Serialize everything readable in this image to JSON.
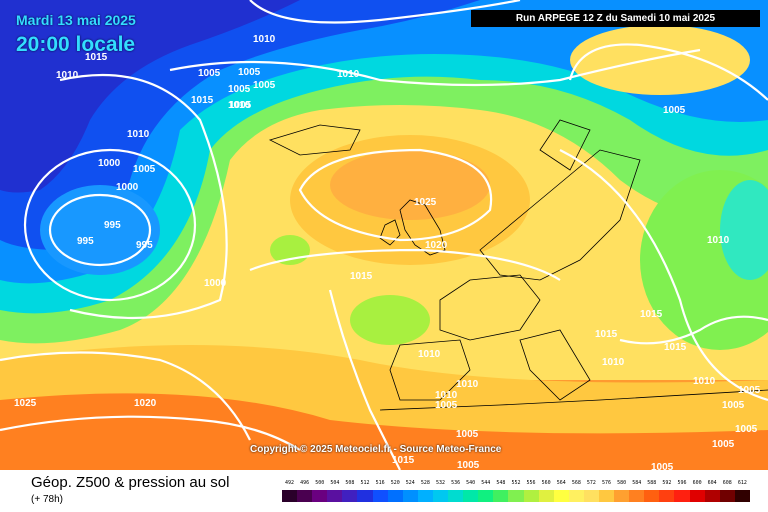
{
  "header": {
    "date": "Mardi 13 mai 2025",
    "time": "20:00 locale",
    "run": "Run ARPEGE 12 Z du Samedi 10 mai 2025"
  },
  "copyright": "Copyright © 2025 Meteociel.fr - Source Meteo-France",
  "footer": {
    "title": "Géop. Z500 & pression au sol",
    "subtitle": "(+ 78h)"
  },
  "scale": {
    "labels": [
      "492",
      "496",
      "500",
      "504",
      "508",
      "512",
      "516",
      "520",
      "524",
      "528",
      "532",
      "536",
      "540",
      "544",
      "548",
      "552",
      "556",
      "560",
      "564",
      "568",
      "572",
      "576",
      "580",
      "584",
      "588",
      "592",
      "596",
      "600",
      "604",
      "608",
      "612"
    ],
    "colors": [
      "#2a002a",
      "#4a0050",
      "#6a0080",
      "#5a10a0",
      "#4020c0",
      "#2030e0",
      "#1050ff",
      "#0070ff",
      "#0090ff",
      "#00b0ff",
      "#00c8f0",
      "#00dcd0",
      "#00e8a8",
      "#10f080",
      "#40f060",
      "#80f050",
      "#b0f040",
      "#e0f040",
      "#ffff40",
      "#fff060",
      "#ffe060",
      "#ffc840",
      "#ffa030",
      "#ff8020",
      "#ff6010",
      "#ff4010",
      "#ff2010",
      "#e00000",
      "#b00000",
      "#700000",
      "#300000"
    ]
  },
  "pressure_labels": [
    "1010",
    "1015",
    "1010",
    "1005",
    "1005",
    "1005",
    "1005",
    "1005",
    "1015",
    "1010",
    "1010",
    "1010",
    "1005",
    "1000",
    "1000",
    "1005",
    "995",
    "995",
    "995",
    "1000",
    "1025",
    "1020",
    "1015",
    "1010",
    "1010",
    "1010",
    "1005",
    "1010",
    "1015",
    "1015",
    "1015",
    "1010",
    "1010",
    "1005",
    "1005",
    "1005",
    "1005",
    "1005",
    "1005",
    "1025",
    "1020",
    "1005",
    "1015"
  ],
  "colors": {
    "isobar": "#ffffff",
    "coast": "#000000"
  }
}
